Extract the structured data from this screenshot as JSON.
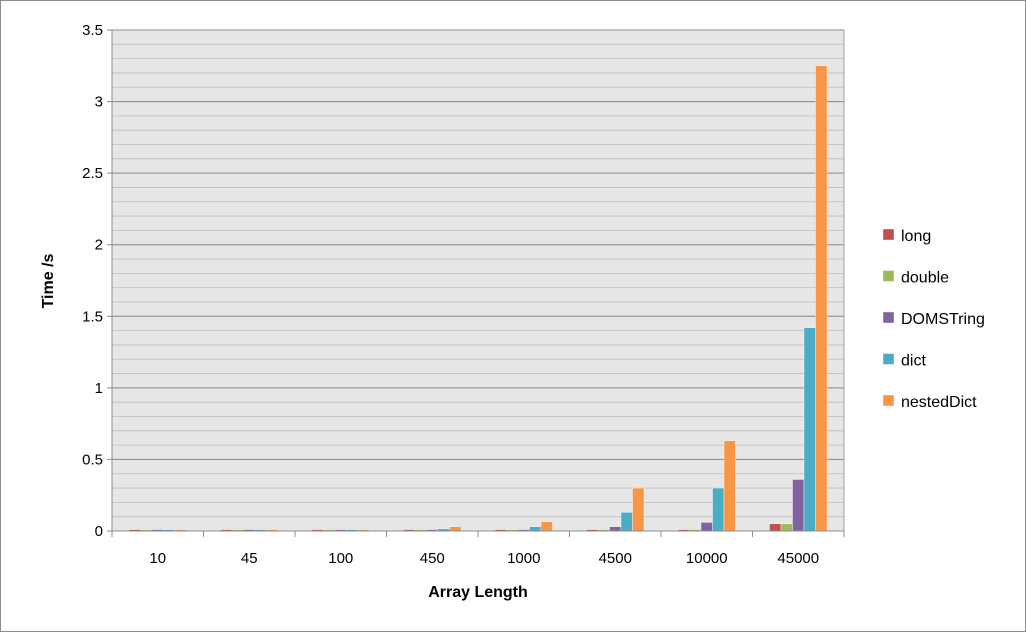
{
  "chart_data": {
    "type": "bar",
    "title": "",
    "xlabel": "Array Length",
    "ylabel": "Time /s",
    "ylim": [
      0,
      3.5
    ],
    "yticks": [
      0,
      0.5,
      1,
      1.5,
      2,
      2.5,
      3,
      3.5
    ],
    "ytick_labels": [
      "0",
      "0.5",
      "1",
      "1.5",
      "2",
      "2.5",
      "3",
      "3.5"
    ],
    "minor_grid_step": 0.1,
    "grid": true,
    "legend_position": "right",
    "categories": [
      "10",
      "45",
      "100",
      "450",
      "1000",
      "4500",
      "10000",
      "45000"
    ],
    "series": [
      {
        "name": "long",
        "color": "#c0504d",
        "values": [
          0.01,
          0.01,
          0.01,
          0.01,
          0.01,
          0.01,
          0.01,
          0.05
        ]
      },
      {
        "name": "double",
        "color": "#9bbb59",
        "values": [
          0.01,
          0.01,
          0.01,
          0.01,
          0.01,
          0.01,
          0.01,
          0.05
        ]
      },
      {
        "name": "DOMSTring",
        "color": "#8064a2",
        "values": [
          0.01,
          0.01,
          0.01,
          0.01,
          0.01,
          0.03,
          0.06,
          0.36
        ]
      },
      {
        "name": "dict",
        "color": "#4bacc6",
        "values": [
          0.01,
          0.01,
          0.01,
          0.015,
          0.03,
          0.13,
          0.3,
          1.42
        ]
      },
      {
        "name": "nestedDict",
        "color": "#f79646",
        "values": [
          0.01,
          0.01,
          0.01,
          0.03,
          0.065,
          0.3,
          0.63,
          3.25
        ]
      }
    ]
  }
}
